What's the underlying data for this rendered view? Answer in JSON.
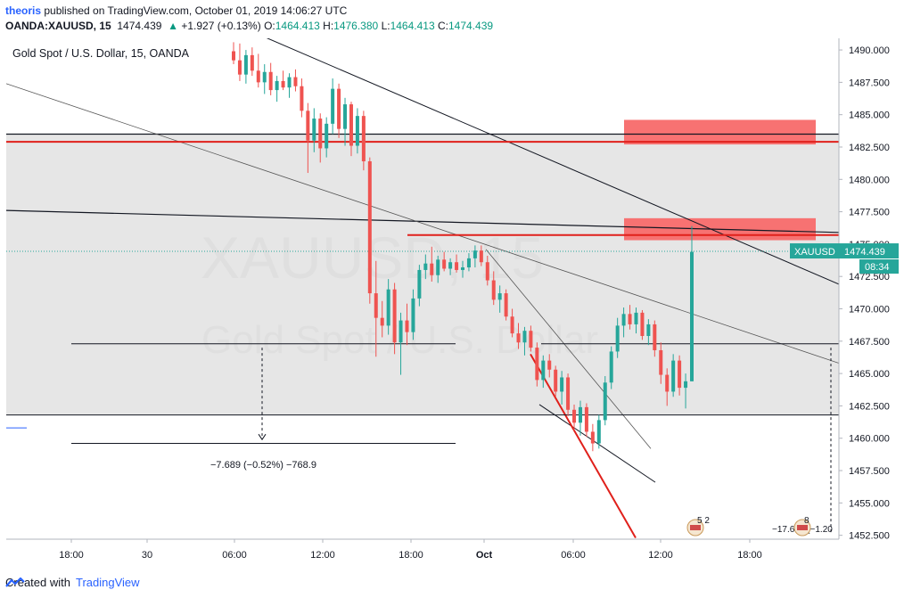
{
  "header": {
    "author": "theoris",
    "published_text": " published on TradingView.com, October 01, 2019 14:06:27 UTC",
    "symbol": "OANDA:XAUUSD, 15",
    "price": "1474.439",
    "change_arrow": "▲",
    "change": "+1.927 (+0.13%)",
    "o_label": "O:",
    "o": "1464.413",
    "h_label": "H:",
    "h": "1476.380",
    "l_label": "L:",
    "l": "1464.413",
    "c_label": "C:",
    "c": "1474.439"
  },
  "chart_title": "Gold Spot / U.S. Dollar, 15, OANDA",
  "watermark": {
    "symbol": "XAUUSD, 15",
    "name": "Gold Spot / U.S. Dollar"
  },
  "price_badge": {
    "label": "XAUUSD",
    "value": "1474.439",
    "countdown": "08:34"
  },
  "measure_label": "−7.689 (−0.52%) −768.9",
  "right_measure_label": "−17.638 (−1.20",
  "events": [
    {
      "count": "5 2"
    },
    {
      "count": "8"
    }
  ],
  "footer": {
    "created_with": "Created with",
    "brand": "TradingView"
  },
  "colors": {
    "up": "#26a69a",
    "down": "#ef5350",
    "red_line": "#e0201b",
    "zone": "#f77272",
    "range_bg": "#e6e6e6"
  },
  "chart_data": {
    "type": "candlestick",
    "symbol": "OANDA:XAUUSD",
    "interval": "15",
    "title": "Gold Spot / U.S. Dollar, 15, OANDA",
    "x_ticks": [
      "18:00",
      "30",
      "06:00",
      "12:00",
      "18:00",
      "Oct",
      "06:00",
      "12:00",
      "18:00"
    ],
    "y_ticks": [
      1490.0,
      1487.5,
      1485.0,
      1482.5,
      1480.0,
      1477.5,
      1475.0,
      1472.5,
      1470.0,
      1467.5,
      1465.0,
      1462.5,
      1460.0,
      1457.5,
      1455.0,
      1452.5
    ],
    "y_range": [
      1452.2,
      1490.9
    ],
    "current_price": 1474.439,
    "horizontal_lines": [
      {
        "price": 1483.5,
        "color": "black"
      },
      {
        "price": 1482.9,
        "color": "red"
      },
      {
        "price": 1467.3,
        "color": "black"
      },
      {
        "price": 1461.8,
        "color": "black"
      },
      {
        "price": 1459.6,
        "color": "black"
      },
      {
        "price": 1475.7,
        "color": "red"
      }
    ],
    "zones": [
      {
        "from": 1482.7,
        "to": 1484.6
      },
      {
        "from": 1475.3,
        "to": 1477.0
      }
    ],
    "shaded_range": [
      1461.8,
      1483.5
    ],
    "measure": {
      "from": 1467.3,
      "to": 1459.6,
      "text": "−7.689 (−0.52%) −768.9"
    },
    "candles": [
      [
        1489.9,
        1490.6,
        1488.9,
        1489.2
      ],
      [
        1489.2,
        1490.5,
        1487.6,
        1488.1
      ],
      [
        1488.1,
        1490.0,
        1487.4,
        1489.6
      ],
      [
        1489.6,
        1490.2,
        1488.0,
        1488.4
      ],
      [
        1488.4,
        1489.7,
        1487.1,
        1487.5
      ],
      [
        1487.5,
        1488.9,
        1486.6,
        1488.3
      ],
      [
        1488.3,
        1489.0,
        1486.5,
        1486.9
      ],
      [
        1486.9,
        1488.0,
        1486.0,
        1487.6
      ],
      [
        1487.6,
        1488.4,
        1486.9,
        1487.1
      ],
      [
        1487.1,
        1488.2,
        1486.3,
        1487.9
      ],
      [
        1487.9,
        1488.5,
        1486.8,
        1487.2
      ],
      [
        1487.2,
        1487.8,
        1484.8,
        1485.3
      ],
      [
        1485.3,
        1485.9,
        1480.5,
        1483.0
      ],
      [
        1483.0,
        1485.5,
        1482.1,
        1484.7
      ],
      [
        1484.7,
        1485.1,
        1481.3,
        1482.4
      ],
      [
        1482.4,
        1484.8,
        1481.7,
        1484.3
      ],
      [
        1484.3,
        1487.8,
        1483.5,
        1487.0
      ],
      [
        1487.0,
        1487.4,
        1483.2,
        1483.9
      ],
      [
        1483.9,
        1486.3,
        1482.6,
        1485.8
      ],
      [
        1485.8,
        1486.0,
        1481.8,
        1482.6
      ],
      [
        1482.6,
        1485.5,
        1482.0,
        1484.9
      ],
      [
        1484.9,
        1485.3,
        1480.7,
        1481.4
      ],
      [
        1481.4,
        1481.7,
        1470.4,
        1471.2
      ],
      [
        1471.2,
        1473.7,
        1466.3,
        1469.3
      ],
      [
        1469.3,
        1470.6,
        1467.8,
        1468.7
      ],
      [
        1468.7,
        1472.3,
        1468.0,
        1471.5
      ],
      [
        1471.5,
        1472.0,
        1466.5,
        1467.4
      ],
      [
        1467.4,
        1469.7,
        1464.9,
        1469.1
      ],
      [
        1469.1,
        1470.4,
        1467.2,
        1468.2
      ],
      [
        1468.2,
        1471.5,
        1467.6,
        1470.8
      ],
      [
        1470.8,
        1473.4,
        1470.2,
        1473.0
      ],
      [
        1473.0,
        1474.2,
        1472.3,
        1473.5
      ],
      [
        1473.5,
        1474.8,
        1472.1,
        1472.6
      ],
      [
        1472.6,
        1474.1,
        1472.0,
        1473.8
      ],
      [
        1473.8,
        1474.4,
        1472.9,
        1473.1
      ],
      [
        1473.1,
        1473.9,
        1472.6,
        1473.6
      ],
      [
        1473.6,
        1474.2,
        1472.8,
        1473.0
      ],
      [
        1473.0,
        1473.7,
        1472.4,
        1473.2
      ],
      [
        1473.2,
        1474.3,
        1472.9,
        1473.9
      ],
      [
        1473.9,
        1474.9,
        1473.2,
        1474.5
      ],
      [
        1474.5,
        1474.9,
        1473.3,
        1473.6
      ],
      [
        1473.6,
        1474.1,
        1471.8,
        1472.2
      ],
      [
        1472.2,
        1472.9,
        1470.3,
        1470.7
      ],
      [
        1470.7,
        1471.8,
        1469.7,
        1471.2
      ],
      [
        1471.2,
        1471.5,
        1469.1,
        1469.4
      ],
      [
        1469.4,
        1470.0,
        1467.8,
        1468.1
      ],
      [
        1468.1,
        1468.9,
        1466.9,
        1467.4
      ],
      [
        1467.4,
        1468.6,
        1466.4,
        1468.3
      ],
      [
        1468.3,
        1468.7,
        1466.7,
        1467.0
      ],
      [
        1467.0,
        1467.4,
        1464.0,
        1464.5
      ],
      [
        1464.5,
        1466.4,
        1463.9,
        1466.0
      ],
      [
        1466.0,
        1466.5,
        1464.7,
        1465.3
      ],
      [
        1465.3,
        1465.6,
        1463.2,
        1463.6
      ],
      [
        1463.6,
        1465.2,
        1462.6,
        1464.7
      ],
      [
        1464.7,
        1465.0,
        1461.7,
        1462.2
      ],
      [
        1462.2,
        1462.6,
        1460.6,
        1461.2
      ],
      [
        1461.2,
        1462.9,
        1460.2,
        1462.4
      ],
      [
        1462.4,
        1462.7,
        1460.1,
        1460.5
      ],
      [
        1460.5,
        1461.1,
        1459.0,
        1459.6
      ],
      [
        1459.6,
        1461.8,
        1459.2,
        1461.4
      ],
      [
        1461.4,
        1464.8,
        1461.0,
        1464.3
      ],
      [
        1464.3,
        1467.1,
        1463.8,
        1466.7
      ],
      [
        1466.7,
        1469.3,
        1466.2,
        1468.7
      ],
      [
        1468.7,
        1470.1,
        1467.8,
        1469.6
      ],
      [
        1469.6,
        1470.3,
        1468.4,
        1468.8
      ],
      [
        1468.8,
        1470.1,
        1468.1,
        1469.7
      ],
      [
        1469.7,
        1469.9,
        1467.6,
        1467.9
      ],
      [
        1467.9,
        1469.2,
        1467.2,
        1468.8
      ],
      [
        1468.8,
        1469.1,
        1466.3,
        1466.8
      ],
      [
        1466.8,
        1467.4,
        1464.2,
        1464.9
      ],
      [
        1464.9,
        1465.4,
        1462.5,
        1463.6
      ],
      [
        1463.6,
        1466.5,
        1463.2,
        1466.0
      ],
      [
        1466.0,
        1466.4,
        1463.3,
        1463.9
      ],
      [
        1463.9,
        1465.0,
        1462.3,
        1464.4
      ],
      [
        1464.4,
        1476.4,
        1464.4,
        1474.4
      ]
    ]
  }
}
